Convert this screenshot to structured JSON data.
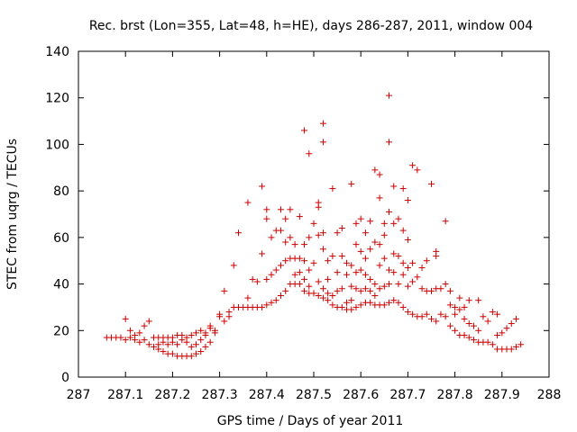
{
  "chart_data": {
    "type": "scatter",
    "title": "Rec. brst (Lon=355, Lat=48, h=HE), days 286-287, 2011, window 004",
    "xlabel": "GPS time / Days of year 2011",
    "ylabel": "STEC from uqrg / TECUs",
    "xlim": [
      287,
      288
    ],
    "ylim": [
      0,
      140
    ],
    "xticks": [
      287,
      287.1,
      287.2,
      287.3,
      287.4,
      287.5,
      287.6,
      287.7,
      287.8,
      287.9,
      288
    ],
    "xtick_labels": [
      "287",
      "287.1",
      "287.2",
      "287.3",
      "287.4",
      "287.5",
      "287.6",
      "287.7",
      "287.8",
      "287.9",
      "288"
    ],
    "yticks": [
      0,
      20,
      40,
      60,
      80,
      100,
      120,
      140
    ],
    "ytick_labels": [
      "0",
      "20",
      "40",
      "60",
      "80",
      "100",
      "120",
      "140"
    ],
    "grid": false,
    "marker": "+",
    "marker_color": "#cc0000",
    "series": [
      {
        "points": [
          [
            287.06,
            17
          ],
          [
            287.07,
            17
          ],
          [
            287.08,
            17
          ],
          [
            287.09,
            17
          ],
          [
            287.1,
            16
          ],
          [
            287.1,
            25
          ],
          [
            287.11,
            17
          ],
          [
            287.11,
            20
          ],
          [
            287.12,
            16
          ],
          [
            287.12,
            18
          ],
          [
            287.13,
            15
          ],
          [
            287.13,
            19
          ],
          [
            287.14,
            22
          ],
          [
            287.14,
            16
          ],
          [
            287.15,
            14
          ],
          [
            287.15,
            24
          ],
          [
            287.16,
            13
          ],
          [
            287.16,
            17
          ],
          [
            287.17,
            12
          ],
          [
            287.17,
            14
          ],
          [
            287.17,
            17
          ],
          [
            287.18,
            11
          ],
          [
            287.18,
            15
          ],
          [
            287.18,
            17
          ],
          [
            287.19,
            10
          ],
          [
            287.19,
            14
          ],
          [
            287.19,
            17
          ],
          [
            287.2,
            10
          ],
          [
            287.2,
            15
          ],
          [
            287.2,
            17
          ],
          [
            287.21,
            9
          ],
          [
            287.21,
            14
          ],
          [
            287.21,
            18
          ],
          [
            287.22,
            9
          ],
          [
            287.22,
            16
          ],
          [
            287.22,
            18
          ],
          [
            287.23,
            9
          ],
          [
            287.23,
            15
          ],
          [
            287.23,
            17
          ],
          [
            287.24,
            9
          ],
          [
            287.24,
            13
          ],
          [
            287.24,
            18
          ],
          [
            287.25,
            10
          ],
          [
            287.25,
            14
          ],
          [
            287.25,
            19
          ],
          [
            287.26,
            11
          ],
          [
            287.26,
            16
          ],
          [
            287.26,
            20
          ],
          [
            287.27,
            13
          ],
          [
            287.27,
            18
          ],
          [
            287.27,
            19
          ],
          [
            287.28,
            15
          ],
          [
            287.28,
            21
          ],
          [
            287.28,
            22
          ],
          [
            287.29,
            19
          ],
          [
            287.29,
            20
          ],
          [
            287.3,
            26
          ],
          [
            287.3,
            27
          ],
          [
            287.31,
            24
          ],
          [
            287.31,
            37
          ],
          [
            287.32,
            26
          ],
          [
            287.32,
            28
          ],
          [
            287.33,
            30
          ],
          [
            287.33,
            48
          ],
          [
            287.34,
            30
          ],
          [
            287.34,
            62
          ],
          [
            287.35,
            30
          ],
          [
            287.36,
            30
          ],
          [
            287.36,
            34
          ],
          [
            287.36,
            75
          ],
          [
            287.37,
            30
          ],
          [
            287.37,
            42
          ],
          [
            287.38,
            30
          ],
          [
            287.38,
            41
          ],
          [
            287.39,
            30
          ],
          [
            287.39,
            53
          ],
          [
            287.39,
            82
          ],
          [
            287.4,
            31
          ],
          [
            287.4,
            42
          ],
          [
            287.4,
            68
          ],
          [
            287.4,
            72
          ],
          [
            287.41,
            32
          ],
          [
            287.41,
            44
          ],
          [
            287.41,
            60
          ],
          [
            287.42,
            33
          ],
          [
            287.42,
            46
          ],
          [
            287.42,
            63
          ],
          [
            287.43,
            35
          ],
          [
            287.43,
            48
          ],
          [
            287.43,
            72
          ],
          [
            287.43,
            63
          ],
          [
            287.44,
            37
          ],
          [
            287.44,
            50
          ],
          [
            287.44,
            58
          ],
          [
            287.44,
            68
          ],
          [
            287.45,
            40
          ],
          [
            287.45,
            51
          ],
          [
            287.45,
            60
          ],
          [
            287.45,
            72
          ],
          [
            287.46,
            40
          ],
          [
            287.46,
            44
          ],
          [
            287.46,
            51
          ],
          [
            287.46,
            57
          ],
          [
            287.47,
            40
          ],
          [
            287.47,
            45
          ],
          [
            287.47,
            51
          ],
          [
            287.47,
            69
          ],
          [
            287.48,
            37
          ],
          [
            287.48,
            42
          ],
          [
            287.48,
            50
          ],
          [
            287.48,
            57
          ],
          [
            287.48,
            106
          ],
          [
            287.49,
            36
          ],
          [
            287.49,
            39
          ],
          [
            287.49,
            46
          ],
          [
            287.49,
            60
          ],
          [
            287.49,
            96
          ],
          [
            287.5,
            36
          ],
          [
            287.5,
            49
          ],
          [
            287.5,
            66
          ],
          [
            287.51,
            35
          ],
          [
            287.51,
            41
          ],
          [
            287.51,
            61
          ],
          [
            287.51,
            73
          ],
          [
            287.51,
            75
          ],
          [
            287.52,
            34
          ],
          [
            287.52,
            38
          ],
          [
            287.52,
            55
          ],
          [
            287.52,
            62
          ],
          [
            287.52,
            101
          ],
          [
            287.52,
            109
          ],
          [
            287.53,
            33
          ],
          [
            287.53,
            36
          ],
          [
            287.53,
            42
          ],
          [
            287.53,
            50
          ],
          [
            287.54,
            31
          ],
          [
            287.54,
            35
          ],
          [
            287.54,
            52
          ],
          [
            287.54,
            81
          ],
          [
            287.55,
            30
          ],
          [
            287.55,
            37
          ],
          [
            287.55,
            45
          ],
          [
            287.55,
            62
          ],
          [
            287.56,
            30
          ],
          [
            287.56,
            38
          ],
          [
            287.56,
            52
          ],
          [
            287.56,
            64
          ],
          [
            287.57,
            29
          ],
          [
            287.57,
            32
          ],
          [
            287.57,
            44
          ],
          [
            287.57,
            49
          ],
          [
            287.58,
            29
          ],
          [
            287.58,
            33
          ],
          [
            287.58,
            39
          ],
          [
            287.58,
            48
          ],
          [
            287.58,
            83
          ],
          [
            287.59,
            30
          ],
          [
            287.59,
            38
          ],
          [
            287.59,
            45
          ],
          [
            287.59,
            57
          ],
          [
            287.59,
            66
          ],
          [
            287.6,
            31
          ],
          [
            287.6,
            37
          ],
          [
            287.6,
            46
          ],
          [
            287.6,
            54
          ],
          [
            287.6,
            68
          ],
          [
            287.61,
            32
          ],
          [
            287.61,
            38
          ],
          [
            287.61,
            44
          ],
          [
            287.61,
            51
          ],
          [
            287.61,
            62
          ],
          [
            287.62,
            32
          ],
          [
            287.62,
            37
          ],
          [
            287.62,
            42
          ],
          [
            287.62,
            55
          ],
          [
            287.62,
            67
          ],
          [
            287.63,
            31
          ],
          [
            287.63,
            35
          ],
          [
            287.63,
            40
          ],
          [
            287.63,
            58
          ],
          [
            287.63,
            89
          ],
          [
            287.64,
            31
          ],
          [
            287.64,
            38
          ],
          [
            287.64,
            48
          ],
          [
            287.64,
            57
          ],
          [
            287.64,
            77
          ],
          [
            287.64,
            87
          ],
          [
            287.65,
            31
          ],
          [
            287.65,
            39
          ],
          [
            287.65,
            51
          ],
          [
            287.65,
            61
          ],
          [
            287.65,
            66
          ],
          [
            287.66,
            32
          ],
          [
            287.66,
            40
          ],
          [
            287.66,
            46
          ],
          [
            287.66,
            71
          ],
          [
            287.66,
            101
          ],
          [
            287.66,
            121
          ],
          [
            287.67,
            33
          ],
          [
            287.67,
            45
          ],
          [
            287.67,
            53
          ],
          [
            287.67,
            66
          ],
          [
            287.67,
            82
          ],
          [
            287.68,
            32
          ],
          [
            287.68,
            40
          ],
          [
            287.68,
            52
          ],
          [
            287.68,
            68
          ],
          [
            287.69,
            30
          ],
          [
            287.69,
            44
          ],
          [
            287.69,
            49
          ],
          [
            287.69,
            63
          ],
          [
            287.69,
            81
          ],
          [
            287.7,
            28
          ],
          [
            287.7,
            39
          ],
          [
            287.7,
            47
          ],
          [
            287.7,
            59
          ],
          [
            287.7,
            76
          ],
          [
            287.71,
            27
          ],
          [
            287.71,
            41
          ],
          [
            287.71,
            49
          ],
          [
            287.71,
            91
          ],
          [
            287.72,
            26
          ],
          [
            287.72,
            43
          ],
          [
            287.72,
            89
          ],
          [
            287.73,
            26
          ],
          [
            287.73,
            38
          ],
          [
            287.73,
            47
          ],
          [
            287.74,
            27
          ],
          [
            287.74,
            37
          ],
          [
            287.74,
            50
          ],
          [
            287.75,
            25
          ],
          [
            287.75,
            37
          ],
          [
            287.75,
            83
          ],
          [
            287.76,
            24
          ],
          [
            287.76,
            38
          ],
          [
            287.76,
            52
          ],
          [
            287.76,
            54
          ],
          [
            287.77,
            27
          ],
          [
            287.77,
            38
          ],
          [
            287.78,
            26
          ],
          [
            287.78,
            40
          ],
          [
            287.78,
            67
          ],
          [
            287.79,
            22
          ],
          [
            287.79,
            31
          ],
          [
            287.79,
            37
          ],
          [
            287.8,
            20
          ],
          [
            287.8,
            27
          ],
          [
            287.8,
            30
          ],
          [
            287.81,
            18
          ],
          [
            287.81,
            29
          ],
          [
            287.81,
            34
          ],
          [
            287.82,
            18
          ],
          [
            287.82,
            25
          ],
          [
            287.82,
            30
          ],
          [
            287.83,
            17
          ],
          [
            287.83,
            23
          ],
          [
            287.83,
            33
          ],
          [
            287.84,
            16
          ],
          [
            287.84,
            22
          ],
          [
            287.85,
            15
          ],
          [
            287.85,
            20
          ],
          [
            287.85,
            33
          ],
          [
            287.86,
            15
          ],
          [
            287.86,
            26
          ],
          [
            287.87,
            15
          ],
          [
            287.87,
            24
          ],
          [
            287.88,
            14
          ],
          [
            287.88,
            28
          ],
          [
            287.89,
            12
          ],
          [
            287.89,
            18
          ],
          [
            287.89,
            27
          ],
          [
            287.9,
            12
          ],
          [
            287.9,
            19
          ],
          [
            287.91,
            12
          ],
          [
            287.91,
            21
          ],
          [
            287.92,
            12
          ],
          [
            287.92,
            23
          ],
          [
            287.93,
            13
          ],
          [
            287.93,
            25
          ],
          [
            287.94,
            14
          ]
        ]
      }
    ]
  }
}
